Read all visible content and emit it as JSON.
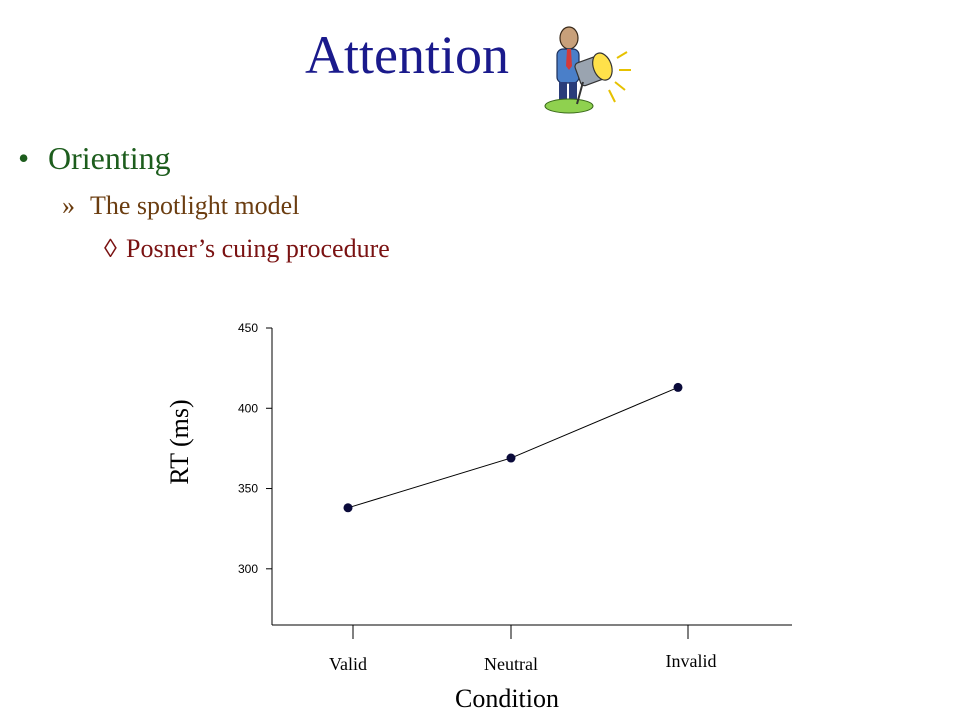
{
  "slide": {
    "title": "Attention",
    "bullet_level1": "Orienting",
    "bullet_level1_marker": "•",
    "bullet_level2": "The spotlight model",
    "bullet_level2_marker": "»",
    "bullet_level3": "Posner’s cuing procedure",
    "bullet_level3_marker": "◊",
    "clipart_icon": "spotlight-person-icon"
  },
  "chart_data": {
    "type": "line",
    "categories": [
      "Valid",
      "Neutral",
      "Invalid"
    ],
    "values": [
      338,
      369,
      413
    ],
    "xlabel": "Condition",
    "ylabel": "RT (ms)",
    "yticks": [
      300,
      350,
      400,
      450
    ],
    "ylim": [
      265,
      450
    ],
    "grid": false,
    "line_color": "#000000",
    "marker_color": "#0a0a3a"
  }
}
